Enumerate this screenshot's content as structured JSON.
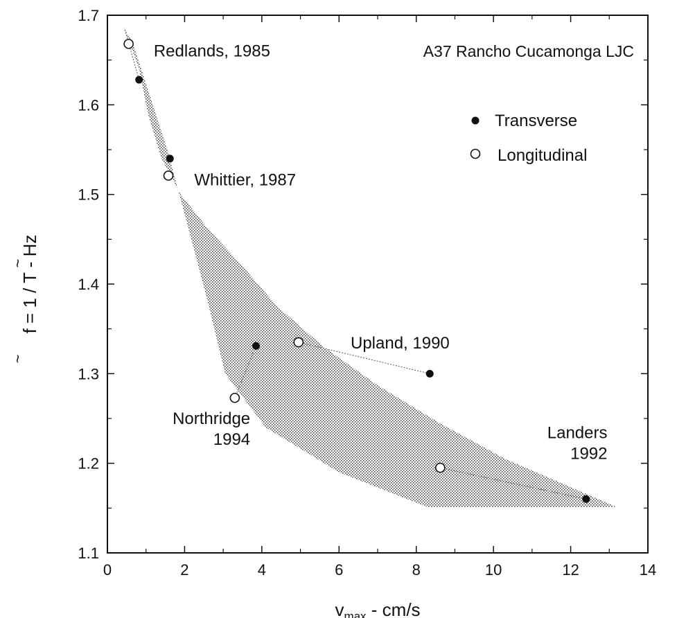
{
  "chart_data": {
    "type": "scatter",
    "title": "A37 Rancho Cucamonga LJC",
    "xlabel": "v",
    "xlabel_sub": "max",
    "xlabel_suffix": " - cm/s",
    "ylabel": "f = 1 / T - Hz",
    "xlim": [
      0,
      14
    ],
    "ylim": [
      1.1,
      1.7
    ],
    "x_ticks": [
      0,
      2,
      4,
      6,
      8,
      10,
      12,
      14
    ],
    "y_ticks": [
      1.1,
      1.2,
      1.3,
      1.4,
      1.5,
      1.6,
      1.7
    ],
    "x_tick_labels": [
      "0",
      "2",
      "4",
      "6",
      "8",
      "10",
      "12",
      "14"
    ],
    "y_tick_labels": [
      "1.1",
      "1.2",
      "1.3",
      "1.4",
      "1.5",
      "1.6",
      "1.7"
    ],
    "series": [
      {
        "name": "Transverse",
        "marker": "filled-circle",
        "color": "#111111",
        "points": [
          {
            "x": 0.82,
            "y": 1.628
          },
          {
            "x": 1.62,
            "y": 1.54
          },
          {
            "x": 3.85,
            "y": 1.331
          },
          {
            "x": 8.35,
            "y": 1.3
          },
          {
            "x": 12.4,
            "y": 1.16
          }
        ]
      },
      {
        "name": "Longitudinal",
        "marker": "open-circle",
        "color": "#111111",
        "points": [
          {
            "x": 0.55,
            "y": 1.668
          },
          {
            "x": 1.58,
            "y": 1.521
          },
          {
            "x": 3.3,
            "y": 1.273
          },
          {
            "x": 4.95,
            "y": 1.335
          },
          {
            "x": 8.62,
            "y": 1.195
          }
        ]
      }
    ],
    "annotations": [
      {
        "lines": [
          "Redlands, 1985"
        ],
        "x": 1.2,
        "y": 1.654,
        "anchor": "start"
      },
      {
        "lines": [
          "Whittier, 1987"
        ],
        "x": 2.25,
        "y": 1.51,
        "anchor": "start"
      },
      {
        "lines": [
          "Upland, 1990"
        ],
        "x": 6.3,
        "y": 1.328,
        "anchor": "start"
      },
      {
        "lines": [
          "Northridge",
          "1994"
        ],
        "x": 3.7,
        "y": 1.244,
        "anchor": "end"
      },
      {
        "lines": [
          "Landers",
          "1992"
        ],
        "x": 12.95,
        "y": 1.228,
        "anchor": "end"
      }
    ],
    "connectors": [
      {
        "from": {
          "x": 0.45,
          "y": 1.684
        },
        "to": {
          "x": 0.82,
          "y": 1.628
        }
      },
      {
        "from": {
          "x": 3.3,
          "y": 1.273
        },
        "to": {
          "x": 3.85,
          "y": 1.331
        }
      },
      {
        "from": {
          "x": 4.95,
          "y": 1.335
        },
        "to": {
          "x": 8.35,
          "y": 1.3
        }
      },
      {
        "from": {
          "x": 8.62,
          "y": 1.195
        },
        "to": {
          "x": 12.4,
          "y": 1.16
        }
      }
    ],
    "shaded_region": [
      {
        "x": 0.45,
        "y": 1.684
      },
      {
        "x": 0.82,
        "y": 1.64
      },
      {
        "x": 1.05,
        "y": 1.59
      },
      {
        "x": 1.4,
        "y": 1.54
      },
      {
        "x": 1.9,
        "y": 1.5
      },
      {
        "x": 2.6,
        "y": 1.462
      },
      {
        "x": 3.5,
        "y": 1.42
      },
      {
        "x": 4.4,
        "y": 1.375
      },
      {
        "x": 5.6,
        "y": 1.33
      },
      {
        "x": 7.0,
        "y": 1.287
      },
      {
        "x": 8.6,
        "y": 1.245
      },
      {
        "x": 10.3,
        "y": 1.205
      },
      {
        "x": 13.2,
        "y": 1.151
      },
      {
        "x": 8.3,
        "y": 1.151
      },
      {
        "x": 6.0,
        "y": 1.19
      },
      {
        "x": 4.1,
        "y": 1.24
      },
      {
        "x": 3.05,
        "y": 1.3
      },
      {
        "x": 2.6,
        "y": 1.38
      },
      {
        "x": 2.05,
        "y": 1.47
      },
      {
        "x": 1.55,
        "y": 1.55
      },
      {
        "x": 1.1,
        "y": 1.61
      },
      {
        "x": 0.65,
        "y": 1.67
      }
    ],
    "legend": {
      "position": "top-right",
      "items": [
        {
          "label": "Transverse",
          "marker": "filled-circle"
        },
        {
          "label": "Longitudinal",
          "marker": "open-circle"
        }
      ]
    },
    "grid": false
  }
}
